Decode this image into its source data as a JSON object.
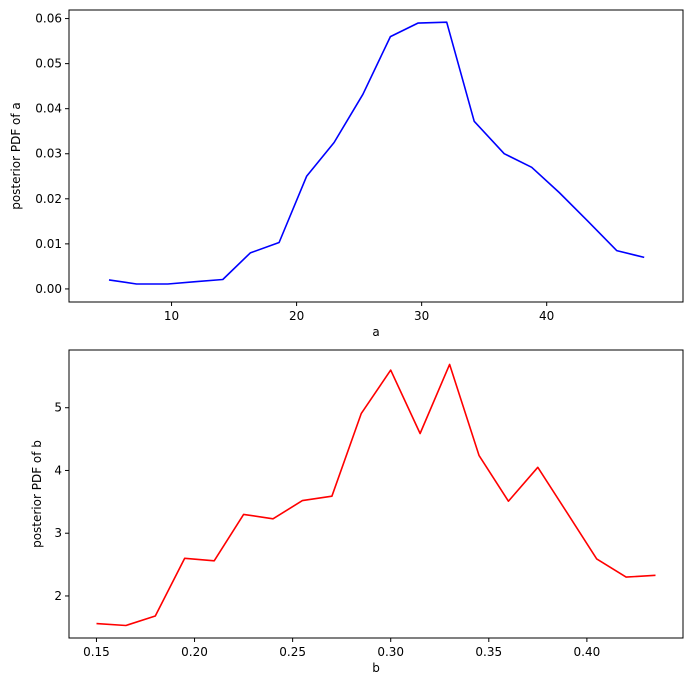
{
  "chart_data": [
    {
      "type": "line",
      "xlabel": "a",
      "ylabel": "posterior PDF of a",
      "xlim": [
        1.8,
        50.9
      ],
      "ylim": [
        -0.0029,
        0.0619
      ],
      "xticks": [
        10,
        20,
        30,
        40
      ],
      "xtick_labels": [
        "10",
        "20",
        "30",
        "40"
      ],
      "yticks": [
        0.0,
        0.01,
        0.02,
        0.03,
        0.04,
        0.05,
        0.06
      ],
      "ytick_labels": [
        "0.00",
        "0.01",
        "0.02",
        "0.03",
        "0.04",
        "0.05",
        "0.06"
      ],
      "color": "#0000ff",
      "grid": false,
      "series": [
        {
          "x": [
            5.0,
            7.2,
            9.7,
            11.9,
            14.1,
            16.3,
            18.6,
            20.8,
            23.0,
            25.3,
            27.5,
            29.7,
            32.0,
            34.2,
            36.6,
            38.8,
            41.0,
            43.3,
            45.6,
            47.8
          ],
          "values": [
            0.002,
            0.0011,
            0.0011,
            0.0016,
            0.0021,
            0.008,
            0.0103,
            0.025,
            0.0325,
            0.0432,
            0.056,
            0.059,
            0.0592,
            0.0372,
            0.03,
            0.027,
            0.0214,
            0.015,
            0.0085,
            0.007
          ]
        }
      ]
    },
    {
      "type": "line",
      "xlabel": "b",
      "ylabel": "posterior PDF of b",
      "xlim": [
        0.136,
        0.449
      ],
      "ylim": [
        1.33,
        5.92
      ],
      "xticks": [
        0.15,
        0.2,
        0.25,
        0.3,
        0.35,
        0.4
      ],
      "xtick_labels": [
        "0.15",
        "0.20",
        "0.25",
        "0.30",
        "0.35",
        "0.40"
      ],
      "yticks": [
        2,
        3,
        4,
        5
      ],
      "ytick_labels": [
        "2",
        "3",
        "4",
        "5"
      ],
      "color": "#ff0000",
      "grid": false,
      "series": [
        {
          "x": [
            0.15,
            0.165,
            0.18,
            0.195,
            0.21,
            0.225,
            0.24,
            0.255,
            0.27,
            0.285,
            0.3,
            0.315,
            0.33,
            0.345,
            0.36,
            0.375,
            0.39,
            0.405,
            0.42,
            0.435
          ],
          "values": [
            1.56,
            1.53,
            1.68,
            2.6,
            2.56,
            3.3,
            3.23,
            3.52,
            3.59,
            4.91,
            5.6,
            4.59,
            5.69,
            4.24,
            3.51,
            4.05,
            3.32,
            2.59,
            2.3,
            2.33
          ]
        }
      ]
    }
  ]
}
